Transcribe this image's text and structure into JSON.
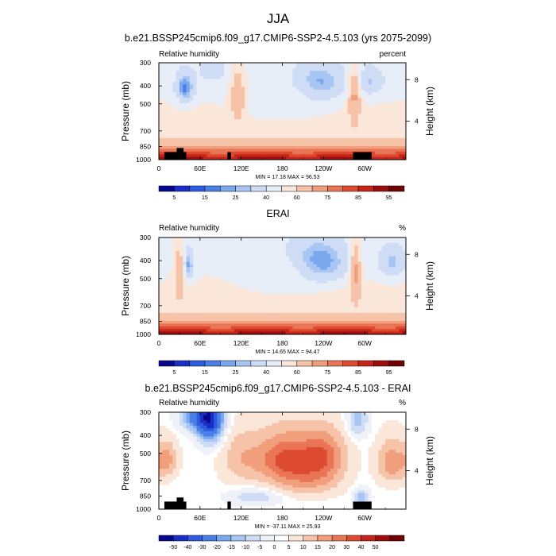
{
  "page": {
    "title": "JJA"
  },
  "colors": {
    "rh_scale": [
      "#08088c",
      "#1a2fc8",
      "#2f5be0",
      "#4a7fe8",
      "#7aa8ef",
      "#a8c6f3",
      "#cfdcf5",
      "#e8eef8",
      "#fbe6da",
      "#f6c3a8",
      "#f19e7c",
      "#ea7556",
      "#dd4a30",
      "#c4241a",
      "#9c0e0e",
      "#6e0303"
    ],
    "diff_scale": [
      "#08088c",
      "#1a2fc8",
      "#2f5be0",
      "#4a7fe8",
      "#7aa8ef",
      "#a8c6f3",
      "#cfdcf5",
      "#eef2f8",
      "#ffffff",
      "#fbe6da",
      "#f6c3a8",
      "#f19e7c",
      "#ea7556",
      "#dd4a30",
      "#c4241a",
      "#9c0e0e",
      "#6e0303"
    ],
    "land_mask": "#000000"
  },
  "chart_data": [
    {
      "type": "heatmap",
      "title": "b.e21.BSSP245cmip6.f09_g17.CMIP6-SSP2-4.5.103 (yrs 2075-2099)",
      "left_label": "Relative humidity",
      "right_label": "percent",
      "ylabel": "Pressure (mb)",
      "y2label": "Height (km)",
      "x_ticks": [
        "0",
        "60E",
        "120E",
        "180",
        "120W",
        "60W"
      ],
      "x_tick_values": [
        0,
        60,
        120,
        180,
        240,
        300
      ],
      "xlim": [
        0,
        360
      ],
      "y_ticks": [
        "300",
        "400",
        "500",
        "700",
        "850",
        "1000"
      ],
      "y_tick_values": [
        300,
        400,
        500,
        700,
        850,
        1000
      ],
      "ylim": [
        1000,
        300
      ],
      "y_scale": "log",
      "y2_ticks": [
        "8",
        "4"
      ],
      "y2_tick_values_mb": [
        370,
        620
      ],
      "stats": "MIN = 17.18  MAX = 96.53",
      "colorbar_labels": [
        "5",
        "15",
        "25",
        "40",
        "60",
        "75",
        "85",
        "95"
      ],
      "colorbar_label_at_box": [
        1,
        3,
        5,
        7,
        9,
        11,
        13,
        15
      ],
      "blobs": [
        {
          "lon": 38,
          "p": 410,
          "rh": 18,
          "sx": 10,
          "sy": 55
        },
        {
          "lon": 80,
          "p": 330,
          "rh": 35,
          "sx": 18,
          "sy": 40
        },
        {
          "lon": 232,
          "p": 390,
          "rh": 18,
          "sx": 25,
          "sy": 65
        },
        {
          "lon": 300,
          "p": 380,
          "rh": 28,
          "sx": 20,
          "sy": 50
        },
        {
          "lon": 180,
          "p": 480,
          "rh": 42,
          "sx": 45,
          "sy": 90
        },
        {
          "lon": 115,
          "p": 460,
          "rh": 70,
          "sx": 8,
          "sy": 120
        },
        {
          "lon": 285,
          "p": 460,
          "rh": 72,
          "sx": 7,
          "sy": 130
        }
      ],
      "land": [
        {
          "lon_start": 8,
          "lon_end": 28,
          "p_top": 910
        },
        {
          "lon_start": 26,
          "lon_end": 36,
          "p_top": 865
        },
        {
          "lon_start": 35,
          "lon_end": 40,
          "p_top": 910
        },
        {
          "lon_start": 100,
          "lon_end": 105,
          "p_top": 910
        },
        {
          "lon_start": 283,
          "lon_end": 310,
          "p_top": 910
        }
      ]
    },
    {
      "type": "heatmap",
      "title": "ERAI",
      "left_label": "Relative humidity",
      "right_label": "%",
      "ylabel": "Pressure (mb)",
      "y2label": "Height (km)",
      "x_ticks": [
        "0",
        "60E",
        "120E",
        "180",
        "120W",
        "60W"
      ],
      "x_tick_values": [
        0,
        60,
        120,
        180,
        240,
        300
      ],
      "xlim": [
        0,
        360
      ],
      "y_ticks": [
        "300",
        "400",
        "500",
        "700",
        "850",
        "1000"
      ],
      "y_tick_values": [
        300,
        400,
        500,
        700,
        850,
        1000
      ],
      "ylim": [
        1000,
        300
      ],
      "y_scale": "log",
      "y2_ticks": [
        "8",
        "4"
      ],
      "y2_tick_values_mb": [
        370,
        620
      ],
      "stats": "MIN = 14.65  MAX = 94.47",
      "colorbar_labels": [
        "5",
        "15",
        "25",
        "40",
        "60",
        "75",
        "85",
        "95"
      ],
      "colorbar_label_at_box": [
        1,
        3,
        5,
        7,
        9,
        11,
        13,
        15
      ],
      "blobs": [
        {
          "lon": 40,
          "p": 420,
          "rh": 15,
          "sx": 8,
          "sy": 60
        },
        {
          "lon": 230,
          "p": 410,
          "rh": 16,
          "sx": 32,
          "sy": 80
        },
        {
          "lon": 340,
          "p": 410,
          "rh": 28,
          "sx": 15,
          "sy": 60
        },
        {
          "lon": 170,
          "p": 480,
          "rh": 45,
          "sx": 40,
          "sy": 90
        },
        {
          "lon": 90,
          "p": 340,
          "rh": 50,
          "sx": 25,
          "sy": 60
        },
        {
          "lon": 287,
          "p": 470,
          "rh": 72,
          "sx": 6,
          "sy": 140
        },
        {
          "lon": 30,
          "p": 460,
          "rh": 68,
          "sx": 6,
          "sy": 140
        }
      ],
      "land": []
    },
    {
      "type": "heatmap",
      "title": "b.e21.BSSP245cmip6.f09_g17.CMIP6-SSP2-4.5.103 - ERAI",
      "left_label": "Relative humidity",
      "right_label": "%",
      "ylabel": "Pressure (mb)",
      "y2label": "Height (km)",
      "x_ticks": [
        "0",
        "60E",
        "120E",
        "180",
        "120W",
        "60W"
      ],
      "x_tick_values": [
        0,
        60,
        120,
        180,
        240,
        300
      ],
      "xlim": [
        0,
        360
      ],
      "y_ticks": [
        "300",
        "400",
        "500",
        "700",
        "850",
        "1000"
      ],
      "y_tick_values": [
        300,
        400,
        500,
        700,
        850,
        1000
      ],
      "ylim": [
        1000,
        300
      ],
      "y_scale": "log",
      "y2_ticks": [
        "8",
        "4"
      ],
      "y2_tick_values_mb": [
        370,
        620
      ],
      "stats": "MIN = -37.11  MAX = 25.93",
      "colorbar_labels": [
        "-50",
        "-40",
        "-30",
        "-20",
        "-15",
        "-10",
        "-5",
        "0",
        "5",
        "10",
        "15",
        "20",
        "30",
        "40",
        "50"
      ],
      "colorbar_label_at_box": [
        1,
        2,
        3,
        4,
        5,
        6,
        7,
        8,
        9,
        10,
        11,
        12,
        13,
        14,
        15
      ],
      "blobs": [
        {
          "lon": 75,
          "p": 330,
          "v": -35,
          "sx": 12,
          "sy": 70
        },
        {
          "lon": 60,
          "p": 320,
          "v": -25,
          "sx": 18,
          "sy": 40
        },
        {
          "lon": 185,
          "p": 540,
          "v": 22,
          "sx": 30,
          "sy": 120
        },
        {
          "lon": 240,
          "p": 520,
          "v": 18,
          "sx": 22,
          "sy": 110
        },
        {
          "lon": 120,
          "p": 530,
          "v": 8,
          "sx": 20,
          "sy": 120
        },
        {
          "lon": 12,
          "p": 540,
          "v": 12,
          "sx": 10,
          "sy": 80
        },
        {
          "lon": 340,
          "p": 560,
          "v": 14,
          "sx": 15,
          "sy": 100
        },
        {
          "lon": 140,
          "p": 860,
          "v": -8,
          "sx": 25,
          "sy": 60
        },
        {
          "lon": 295,
          "p": 860,
          "v": -12,
          "sx": 8,
          "sy": 60
        },
        {
          "lon": 290,
          "p": 330,
          "v": -12,
          "sx": 10,
          "sy": 50
        },
        {
          "lon": 220,
          "p": 720,
          "v": 8,
          "sx": 30,
          "sy": 90
        }
      ],
      "land": [
        {
          "lon_start": 8,
          "lon_end": 28,
          "p_top": 910
        },
        {
          "lon_start": 26,
          "lon_end": 36,
          "p_top": 865
        },
        {
          "lon_start": 35,
          "lon_end": 40,
          "p_top": 910
        },
        {
          "lon_start": 100,
          "lon_end": 105,
          "p_top": 910
        },
        {
          "lon_start": 283,
          "lon_end": 310,
          "p_top": 910
        }
      ]
    }
  ]
}
